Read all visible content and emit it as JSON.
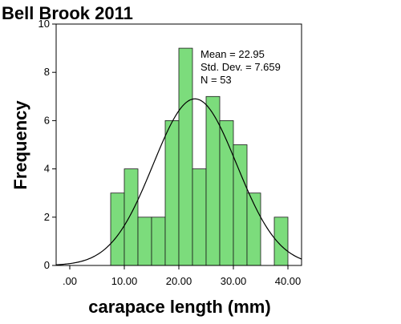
{
  "chart_data": {
    "type": "histogram",
    "title": "Bell Brook 2011",
    "xlabel": "carapace length (mm)",
    "ylabel": "Frequency",
    "xlim": [
      -2.5,
      42.5
    ],
    "ylim": [
      0,
      10
    ],
    "x_ticks": [
      0,
      10,
      20,
      30,
      40
    ],
    "x_tick_labels": [
      ".00",
      "10.00",
      "20.00",
      "30.00",
      "40.00"
    ],
    "y_ticks": [
      0,
      2,
      4,
      6,
      8,
      10
    ],
    "y_tick_labels": [
      "0",
      "2",
      "4",
      "6",
      "8",
      "10"
    ],
    "bins": [
      {
        "start": 7.5,
        "end": 10,
        "count": 3
      },
      {
        "start": 10,
        "end": 12.5,
        "count": 4
      },
      {
        "start": 12.5,
        "end": 15,
        "count": 2
      },
      {
        "start": 15,
        "end": 17.5,
        "count": 2
      },
      {
        "start": 17.5,
        "end": 20,
        "count": 6
      },
      {
        "start": 20,
        "end": 22.5,
        "count": 9
      },
      {
        "start": 22.5,
        "end": 25,
        "count": 4
      },
      {
        "start": 25,
        "end": 27.5,
        "count": 7
      },
      {
        "start": 27.5,
        "end": 30,
        "count": 6
      },
      {
        "start": 30,
        "end": 32.5,
        "count": 5
      },
      {
        "start": 32.5,
        "end": 35,
        "count": 3
      },
      {
        "start": 37.5,
        "end": 40,
        "count": 2
      }
    ],
    "bar_color": "#7cdc7c",
    "bar_stroke": "#1a1a1a",
    "normal_curve": {
      "mean": 22.95,
      "std_dev": 7.659,
      "n": 53,
      "bin_width": 2.5
    },
    "stats": {
      "mean_label": "Mean = 22.95",
      "std_label": "Std. Dev. = 7.659",
      "n_label": "N = 53"
    },
    "grid": false
  }
}
